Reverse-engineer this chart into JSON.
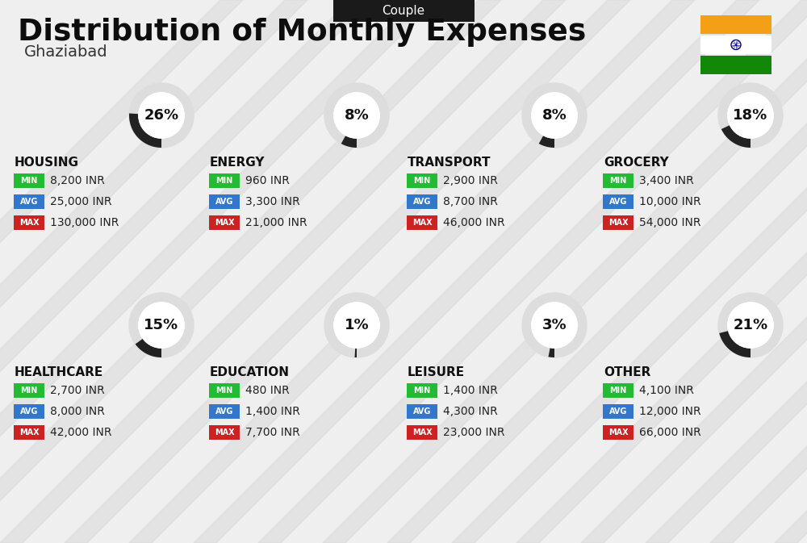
{
  "title": "Distribution of Monthly Expenses",
  "subtitle": "Ghaziabad",
  "category_label": "Couple",
  "background_color": "#efefef",
  "header_bg": "#1a1a1a",
  "header_text_color": "#ffffff",
  "categories": [
    {
      "name": "HOUSING",
      "percent": 26,
      "min_val": "8,200 INR",
      "avg_val": "25,000 INR",
      "max_val": "130,000 INR",
      "row": 0,
      "col": 0
    },
    {
      "name": "ENERGY",
      "percent": 8,
      "min_val": "960 INR",
      "avg_val": "3,300 INR",
      "max_val": "21,000 INR",
      "row": 0,
      "col": 1
    },
    {
      "name": "TRANSPORT",
      "percent": 8,
      "min_val": "2,900 INR",
      "avg_val": "8,700 INR",
      "max_val": "46,000 INR",
      "row": 0,
      "col": 2
    },
    {
      "name": "GROCERY",
      "percent": 18,
      "min_val": "3,400 INR",
      "avg_val": "10,000 INR",
      "max_val": "54,000 INR",
      "row": 0,
      "col": 3
    },
    {
      "name": "HEALTHCARE",
      "percent": 15,
      "min_val": "2,700 INR",
      "avg_val": "8,000 INR",
      "max_val": "42,000 INR",
      "row": 1,
      "col": 0
    },
    {
      "name": "EDUCATION",
      "percent": 1,
      "min_val": "480 INR",
      "avg_val": "1,400 INR",
      "max_val": "7,700 INR",
      "row": 1,
      "col": 1
    },
    {
      "name": "LEISURE",
      "percent": 3,
      "min_val": "1,400 INR",
      "avg_val": "4,300 INR",
      "max_val": "23,000 INR",
      "row": 1,
      "col": 2
    },
    {
      "name": "OTHER",
      "percent": 21,
      "min_val": "4,100 INR",
      "avg_val": "12,000 INR",
      "max_val": "66,000 INR",
      "row": 1,
      "col": 3
    }
  ],
  "min_color": "#22bb33",
  "avg_color": "#3377cc",
  "max_color": "#cc2222",
  "label_text_color": "#ffffff",
  "value_text_color": "#222222",
  "category_name_color": "#111111",
  "circle_fill": "#ffffff",
  "circle_ring_bg": "#dddddd",
  "circle_ring_fg": "#222222",
  "percent_color": "#111111",
  "india_orange": "#F4A017",
  "india_green": "#138808",
  "stripe_color": "#d8d8d8",
  "stripe_alpha": 0.5
}
